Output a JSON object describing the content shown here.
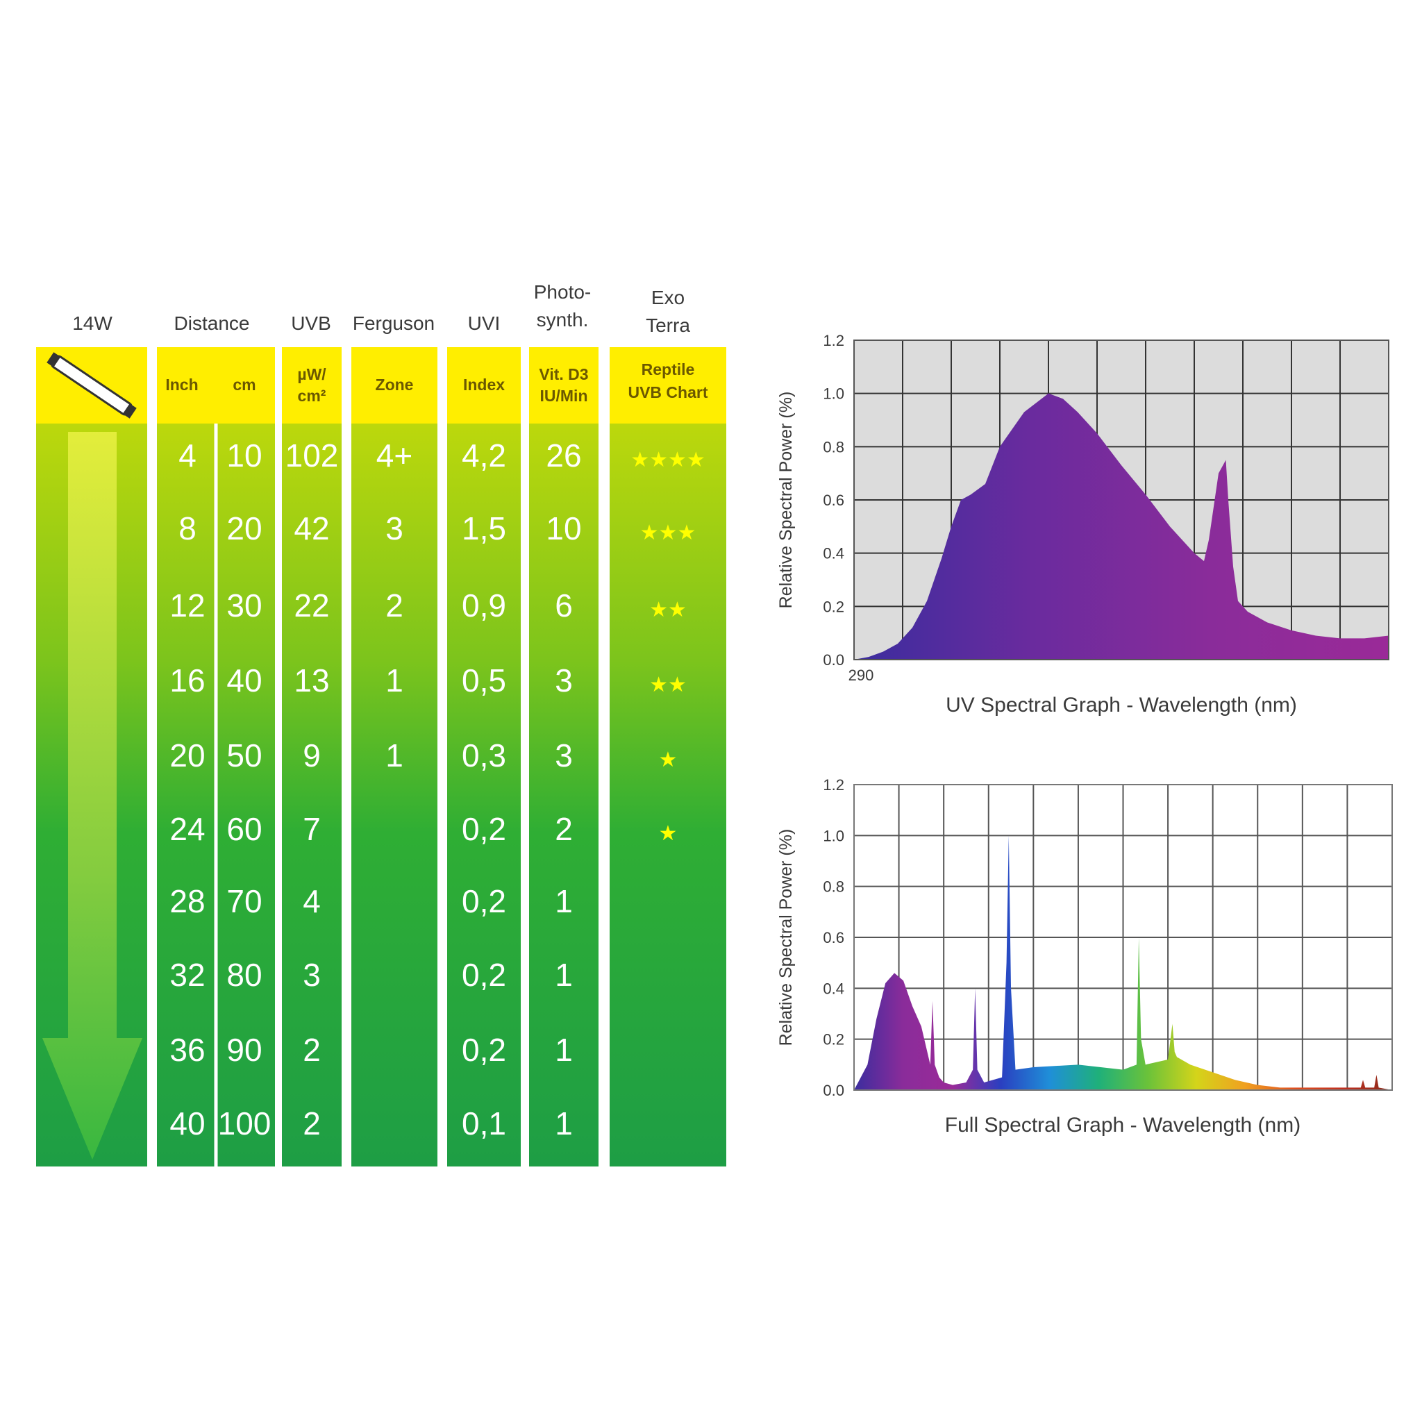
{
  "table": {
    "headers": {
      "wattage": "14W",
      "distance": "Distance",
      "uvb": "UVB",
      "ferguson": "Ferguson",
      "uvi": "UVI",
      "photo_line1": "Photo-",
      "photo_line2": "synth.",
      "exo_line1": "Exo",
      "exo_line2": "Terra"
    },
    "subheaders": {
      "inch": "Inch",
      "cm": "cm",
      "uvb_line1": "µW/",
      "uvb_line2": "cm²",
      "zone": "Zone",
      "index": "Index",
      "vitd_line1": "Vit. D3",
      "vitd_line2": "IU/Min",
      "reptile_line1": "Reptile",
      "reptile_line2": "UVB Chart"
    },
    "rows": [
      {
        "inch": "4",
        "cm": "10",
        "uvb": "102",
        "zone": "4+",
        "uvi": "4,2",
        "vitd": "26",
        "stars": "★★★★"
      },
      {
        "inch": "8",
        "cm": "20",
        "uvb": "42",
        "zone": "3",
        "uvi": "1,5",
        "vitd": "10",
        "stars": "★★★"
      },
      {
        "inch": "12",
        "cm": "30",
        "uvb": "22",
        "zone": "2",
        "uvi": "0,9",
        "vitd": "6",
        "stars": "★★"
      },
      {
        "inch": "16",
        "cm": "40",
        "uvb": "13",
        "zone": "1",
        "uvi": "0,5",
        "vitd": "3",
        "stars": "★★"
      },
      {
        "inch": "20",
        "cm": "50",
        "uvb": "9",
        "zone": "1",
        "uvi": "0,3",
        "vitd": "3",
        "stars": "★"
      },
      {
        "inch": "24",
        "cm": "60",
        "uvb": "7",
        "zone": "",
        "uvi": "0,2",
        "vitd": "2",
        "stars": "★"
      },
      {
        "inch": "28",
        "cm": "70",
        "uvb": "4",
        "zone": "",
        "uvi": "0,2",
        "vitd": "1",
        "stars": ""
      },
      {
        "inch": "32",
        "cm": "80",
        "uvb": "3",
        "zone": "",
        "uvi": "0,2",
        "vitd": "1",
        "stars": ""
      },
      {
        "inch": "36",
        "cm": "90",
        "uvb": "2",
        "zone": "",
        "uvi": "0,2",
        "vitd": "1",
        "stars": ""
      },
      {
        "inch": "40",
        "cm": "100",
        "uvb": "2",
        "zone": "",
        "uvi": "0,1",
        "vitd": "1",
        "stars": ""
      }
    ],
    "colors": {
      "header_yellow": "#ffee00",
      "green_top": "#b8d60a",
      "green_bottom": "#1ea045",
      "star": "#ffff00"
    }
  },
  "chart_data": [
    {
      "type": "area",
      "title": "UV Spectral Graph - Wavelength (nm)",
      "xlabel": "UV Spectral Graph - Wavelength (nm)",
      "ylabel": "Relative Spectral Power (%)",
      "x_tick_labels": [
        "290"
      ],
      "yticks": [
        "0.0",
        "0.2",
        "0.4",
        "0.6",
        "0.8",
        "1.0",
        "1.2"
      ],
      "ylim": [
        0,
        1.2
      ],
      "grid": true,
      "x_divisions": 11,
      "series": [
        {
          "x": [
            0,
            0.3,
            0.6,
            0.9,
            1.2,
            1.5,
            1.8,
            2.0,
            2.2,
            2.4,
            2.7,
            3.0,
            3.5,
            4.0,
            4.3,
            4.6,
            5.0,
            5.5,
            6.0,
            6.5,
            7.0,
            7.2,
            7.3,
            7.5,
            7.65,
            7.7,
            7.8,
            7.9,
            8.1,
            8.5,
            9.0,
            9.5,
            10.0,
            10.5,
            11.0
          ],
          "y": [
            0.0,
            0.01,
            0.03,
            0.06,
            0.12,
            0.22,
            0.38,
            0.5,
            0.6,
            0.62,
            0.66,
            0.8,
            0.93,
            1.0,
            0.98,
            0.93,
            0.85,
            0.73,
            0.62,
            0.5,
            0.4,
            0.37,
            0.45,
            0.7,
            0.75,
            0.6,
            0.35,
            0.22,
            0.18,
            0.14,
            0.11,
            0.09,
            0.08,
            0.08,
            0.09
          ],
          "gradient": [
            "#3b2d9e",
            "#6a2b9e",
            "#8a2c9a",
            "#9a2a98"
          ]
        }
      ]
    },
    {
      "type": "area",
      "title": "Full Spectral Graph - Wavelength (nm)",
      "xlabel": "Full Spectral Graph - Wavelength (nm)",
      "ylabel": "Relative Spectral Power (%)",
      "yticks": [
        "0.0",
        "0.2",
        "0.4",
        "0.6",
        "0.8",
        "1.0",
        "1.2"
      ],
      "ylim": [
        0,
        1.2
      ],
      "grid": true,
      "x_divisions": 12,
      "series": [
        {
          "x": [
            0,
            0.3,
            0.5,
            0.7,
            0.9,
            1.1,
            1.3,
            1.5,
            1.7,
            1.75,
            1.8,
            1.9,
            2.0,
            2.2,
            2.5,
            2.65,
            2.7,
            2.75,
            2.9,
            3.3,
            3.4,
            3.45,
            3.5,
            3.6,
            4.0,
            5.0,
            6.0,
            6.3,
            6.35,
            6.4,
            6.5,
            7.0,
            7.1,
            7.15,
            7.2,
            7.5,
            8.0,
            8.5,
            9.0,
            9.5,
            10.0,
            10.5,
            11.0,
            11.3,
            11.35,
            11.4,
            11.6,
            11.65,
            11.7,
            12.0
          ],
          "y": [
            0.0,
            0.1,
            0.28,
            0.42,
            0.46,
            0.43,
            0.33,
            0.25,
            0.1,
            0.35,
            0.1,
            0.05,
            0.03,
            0.02,
            0.03,
            0.08,
            0.4,
            0.08,
            0.03,
            0.05,
            0.5,
            1.0,
            0.4,
            0.08,
            0.09,
            0.1,
            0.08,
            0.1,
            0.6,
            0.2,
            0.1,
            0.12,
            0.26,
            0.15,
            0.13,
            0.1,
            0.07,
            0.04,
            0.02,
            0.01,
            0.01,
            0.01,
            0.01,
            0.01,
            0.04,
            0.01,
            0.01,
            0.06,
            0.01,
            0.0
          ],
          "gradient": [
            "#3b2d9e",
            "#8a2c9a",
            "#9a2a98",
            "#2a3fc0",
            "#1f8fd8",
            "#1fb07a",
            "#6ac23a",
            "#d4d41a",
            "#f0a020",
            "#e05020",
            "#c03020",
            "#8a2a1a"
          ]
        }
      ]
    }
  ]
}
